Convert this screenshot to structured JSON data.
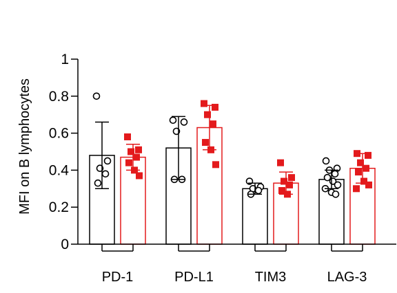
{
  "chart_data": {
    "type": "bar",
    "ylabel": "MFI on B lymphocytes",
    "xlabel": "",
    "ylim": [
      0,
      1
    ],
    "yticks": [
      {
        "value": 0,
        "label": "0"
      },
      {
        "value": 0.2,
        "label": "0.2"
      },
      {
        "value": 0.4,
        "label": "0.4"
      },
      {
        "value": 0.6,
        "label": "0.6"
      },
      {
        "value": 0.8,
        "label": "0.8"
      },
      {
        "value": 1,
        "label": "1"
      }
    ],
    "categories": [
      "PD-1",
      "PD-L1",
      "TIM3",
      "LAG-3"
    ],
    "series": [
      {
        "color": "#000000",
        "marker": "open-circle",
        "values": [
          0.48,
          0.52,
          0.3,
          0.35
        ],
        "sd": [
          0.18,
          0.17,
          0.03,
          0.05
        ],
        "points": [
          [
            0.8,
            0.45,
            0.41,
            0.38,
            0.33
          ],
          [
            0.67,
            0.66,
            0.61,
            0.35,
            0.35
          ],
          [
            0.34,
            0.31,
            0.3,
            0.29,
            0.27
          ],
          [
            0.45,
            0.41,
            0.4,
            0.38,
            0.36,
            0.34,
            0.32,
            0.3,
            0.28,
            0.27
          ]
        ]
      },
      {
        "color": "#e31a1c",
        "marker": "filled-square",
        "values": [
          0.47,
          0.63,
          0.33,
          0.41
        ],
        "sd": [
          0.07,
          0.12,
          0.06,
          0.08
        ],
        "points": [
          [
            0.58,
            0.51,
            0.5,
            0.47,
            0.44,
            0.4,
            0.37
          ],
          [
            0.76,
            0.74,
            0.7,
            0.65,
            0.55,
            0.51,
            0.43
          ],
          [
            0.44,
            0.36,
            0.34,
            0.32,
            0.29,
            0.27
          ],
          [
            0.49,
            0.48,
            0.44,
            0.41,
            0.39,
            0.34,
            0.32,
            0.3
          ]
        ]
      }
    ]
  }
}
